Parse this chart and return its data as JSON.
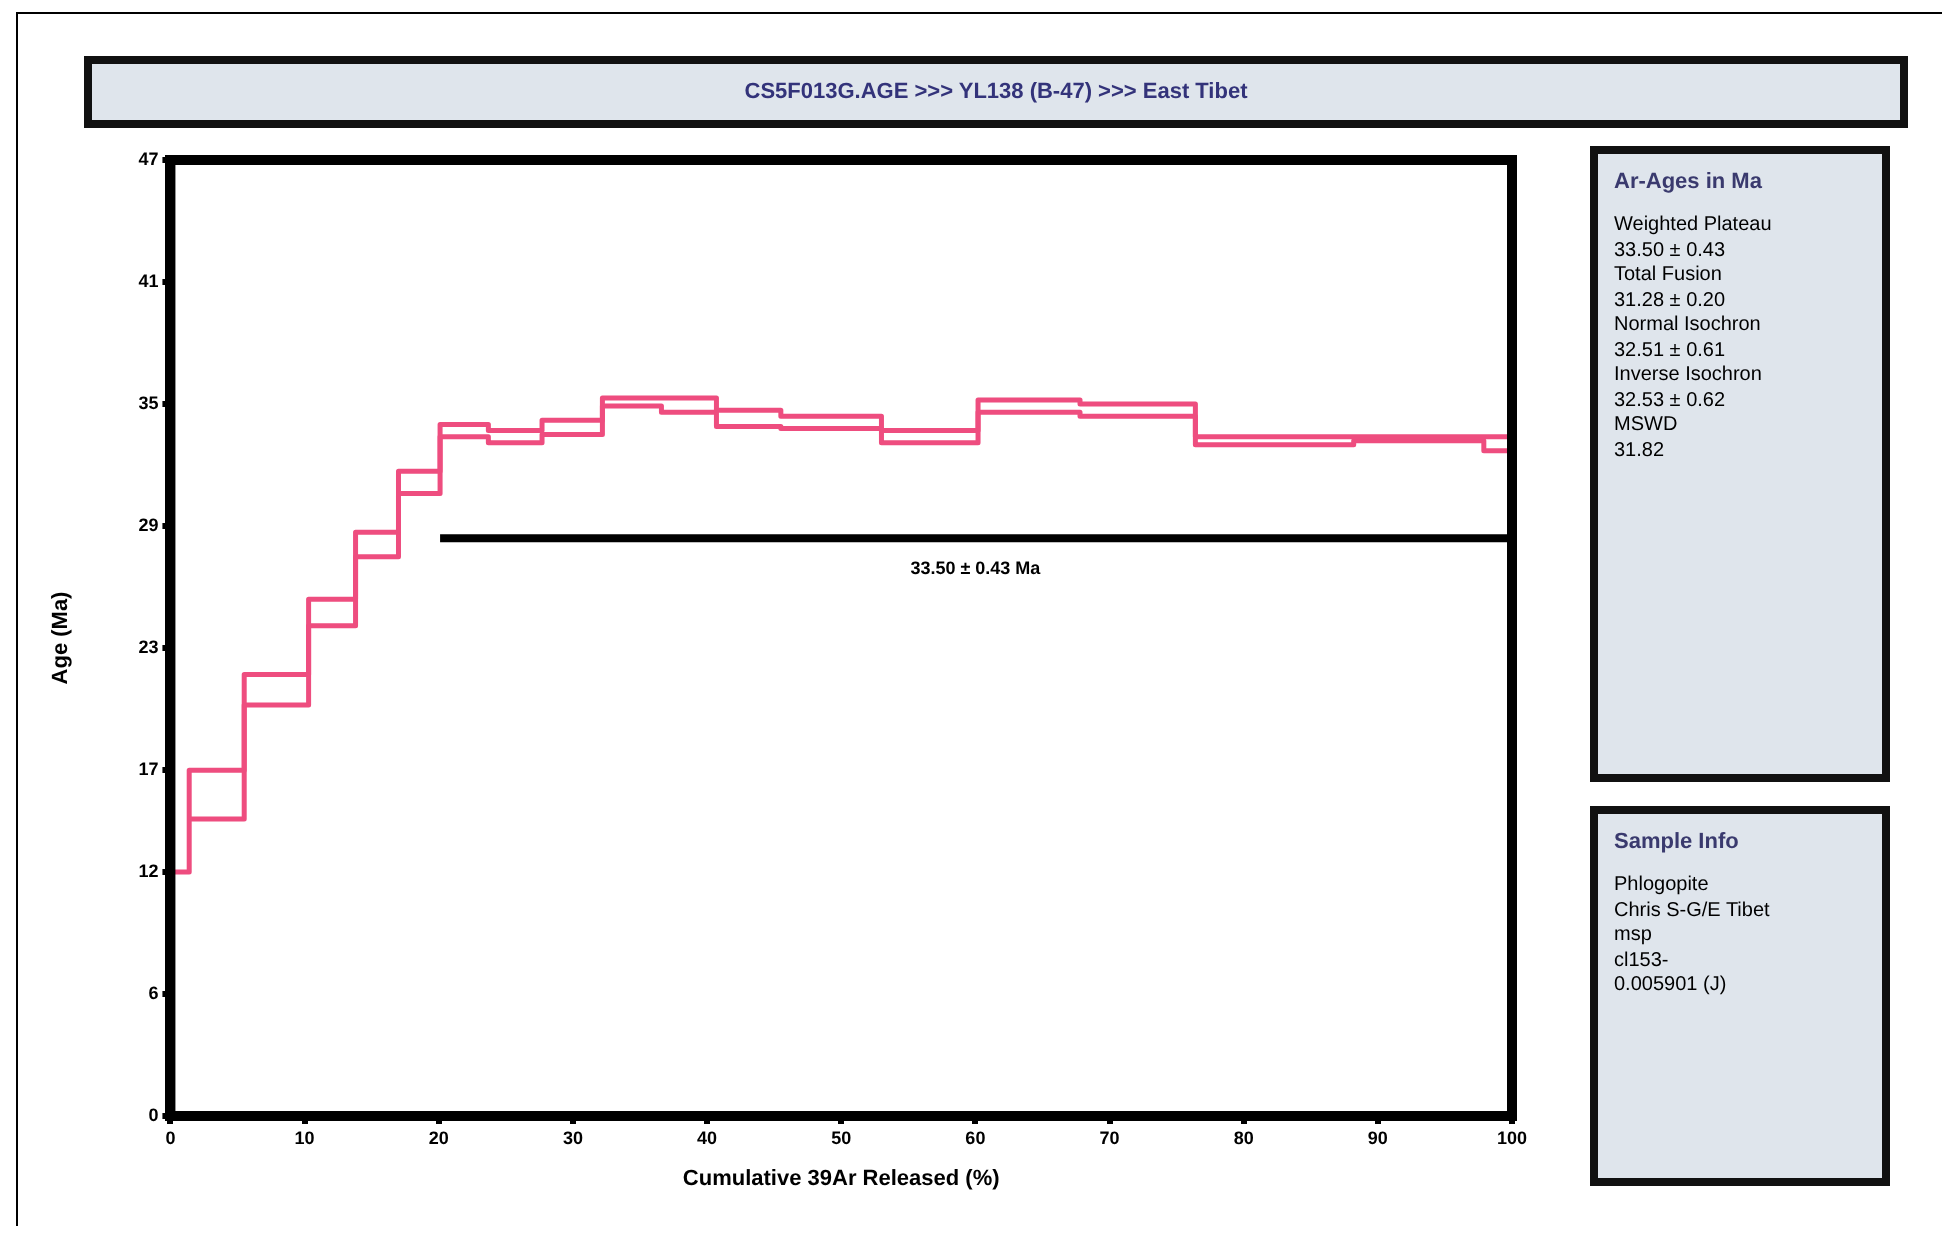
{
  "chart_data": [
    {
      "type": "step",
      "title": "CS5F013G.AGE >>> YL138 (B-47) >>> East Tibet",
      "xlabel": "Cumulative 39Ar Released (%)",
      "ylabel": "Age (Ma)",
      "xlim": [
        0,
        100
      ],
      "xticks": [
        0,
        10,
        20,
        30,
        40,
        50,
        60,
        70,
        80,
        90,
        100
      ],
      "ylim": [
        0,
        47
      ],
      "yticks": [
        0,
        6,
        12,
        17,
        23,
        29,
        35,
        41,
        47
      ],
      "grid": false,
      "legend": false,
      "marker": "none",
      "annotations": [
        "33.50 ± 0.43 Ma"
      ],
      "series": [
        {
          "color": "#ee4d7f",
          "x": [
            0,
            1.4,
            5.5,
            10.3,
            13.8,
            17.0,
            20.1,
            23.7,
            27.7,
            32.2,
            36.6,
            40.7,
            45.5,
            53.0,
            60.2,
            67.8,
            76.4,
            88.2,
            97.9,
            100
          ],
          "values": [
            12,
            17.0,
            21.7,
            25.4,
            28.7,
            31.7,
            34.0,
            33.7,
            34.2,
            35.3,
            35.3,
            34.7,
            34.4,
            33.7,
            35.2,
            35.0,
            33.4,
            33.4,
            33.4,
            33.4
          ]
        },
        {
          "color": "#ee4d7f",
          "x": [
            1.4,
            5.5,
            10.3,
            13.8,
            17.0,
            20.1,
            23.7,
            27.7,
            32.2,
            36.6,
            40.7,
            45.5,
            53.0,
            60.2,
            67.8,
            76.4,
            88.2,
            97.9,
            100
          ],
          "values": [
            14.6,
            20.2,
            24.1,
            27.5,
            30.6,
            33.4,
            33.1,
            33.5,
            34.9,
            34.6,
            33.9,
            33.8,
            33.1,
            34.6,
            34.4,
            33.0,
            33.2,
            32.7,
            32.7
          ]
        },
        {
          "type": "line",
          "color": "#000000",
          "x": [
            20.1,
            100
          ],
          "values": [
            28.4,
            28.4
          ]
        }
      ]
    },
    {
      "type": "other",
      "title": "Ar-Ages in Ma",
      "annotations": [
        "Weighted Plateau",
        "33.50 ± 0.43",
        "Total Fusion",
        "31.28 ± 0.20",
        "Normal Isochron",
        "32.51 ± 0.61",
        "Inverse Isochron",
        "32.53 ± 0.62",
        "MSWD",
        "31.82"
      ]
    },
    {
      "type": "other",
      "title": "Sample Info",
      "annotations": [
        "Phlogopite",
        "Chris S-G/E Tibet",
        "msp",
        "cl153-",
        "0.005901 (J)"
      ]
    }
  ]
}
